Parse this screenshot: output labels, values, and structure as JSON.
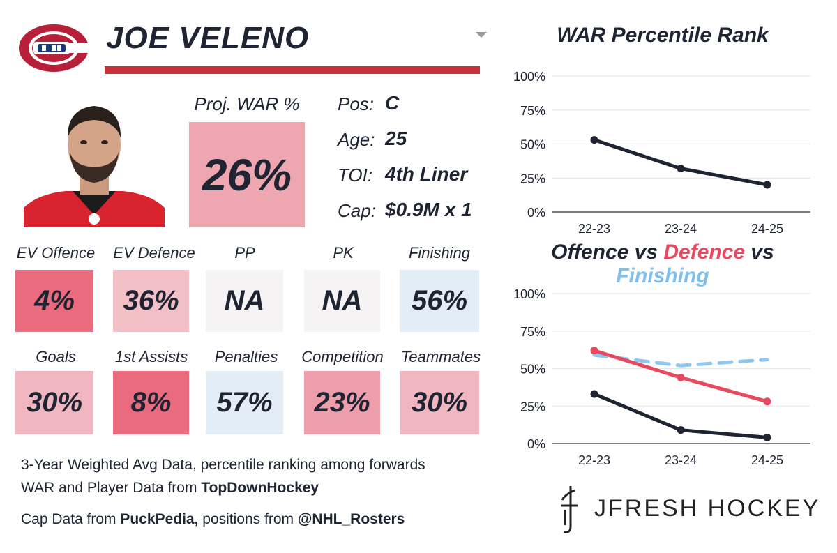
{
  "header": {
    "name": "JOE VELENO"
  },
  "projected": {
    "label": "Proj. WAR %",
    "value": "26%",
    "color": "#eea7b1"
  },
  "info": [
    {
      "label": "Pos:",
      "value": "C"
    },
    {
      "label": "Age:",
      "value": "25"
    },
    {
      "label": "TOI:",
      "value": "4th Liner"
    },
    {
      "label": "Cap:",
      "value": "$0.9M x 1"
    }
  ],
  "metrics_row1": [
    {
      "label": "EV Offence",
      "value": "4%",
      "color": "#ea6b7e"
    },
    {
      "label": "EV Defence",
      "value": "36%",
      "color": "#f3c0c7"
    },
    {
      "label": "PP",
      "value": "NA",
      "color": "#f6f3f4"
    },
    {
      "label": "PK",
      "value": "NA",
      "color": "#f6f3f4"
    },
    {
      "label": "Finishing",
      "value": "56%",
      "color": "#e3edf6"
    }
  ],
  "metrics_row2": [
    {
      "label": "Goals",
      "value": "30%",
      "color": "#f1b7c0"
    },
    {
      "label": "1st Assists",
      "value": "8%",
      "color": "#ea6b7e"
    },
    {
      "label": "Penalties",
      "value": "57%",
      "color": "#e3edf6"
    },
    {
      "label": "Competition",
      "value": "23%",
      "color": "#ee9eaa"
    },
    {
      "label": "Teammates",
      "value": "30%",
      "color": "#f1b7c0"
    }
  ],
  "footer": {
    "line1": "3-Year Weighted Avg Data, percentile ranking among forwards",
    "line2_text": "WAR and Player Data from ",
    "line2_bold": "TopDownHockey",
    "line3_text1": "Cap Data from ",
    "line3_bold1": "PuckPedia,",
    "line3_text2": " positions from ",
    "line3_bold2": "@NHL_Rosters"
  },
  "brand": {
    "name": "JFRESH HOCKEY"
  },
  "chart_data": [
    {
      "type": "line",
      "title": "WAR Percentile Rank",
      "categories": [
        "22-23",
        "23-24",
        "24-25"
      ],
      "y_ticks": [
        "100%",
        "75%",
        "50%",
        "25%",
        "0%"
      ],
      "ylim": [
        0,
        100
      ],
      "grid": true,
      "series": [
        {
          "values": [
            53,
            32,
            20
          ],
          "color": "#1f2433",
          "dashed": false
        }
      ]
    },
    {
      "type": "line",
      "title_parts": [
        {
          "text": "Offence",
          "color": "#1f2433"
        },
        {
          "text": " vs ",
          "color": "#1f2433"
        },
        {
          "text": "Defence",
          "color": "#e8495f"
        },
        {
          "text": " vs ",
          "color": "#1f2433"
        },
        {
          "text": "Finishing",
          "color": "#7fbff0"
        }
      ],
      "categories": [
        "22-23",
        "23-24",
        "24-25"
      ],
      "y_ticks": [
        "100%",
        "75%",
        "50%",
        "25%",
        "0%"
      ],
      "ylim": [
        0,
        100
      ],
      "grid": true,
      "series": [
        {
          "values": [
            59,
            52,
            56
          ],
          "color": "#8fc7f0",
          "dashed": true
        },
        {
          "values": [
            62,
            44,
            28
          ],
          "color": "#e8495f",
          "dashed": false
        },
        {
          "values": [
            33,
            9,
            4
          ],
          "color": "#1f2433",
          "dashed": false
        }
      ]
    }
  ]
}
